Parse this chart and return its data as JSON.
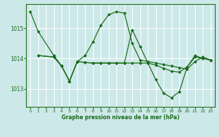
{
  "bg_color": "#cce8e8",
  "grid_color": "#ffffff",
  "line_color": "#1a6b1a",
  "xlabel": "Graphe pression niveau de la mer (hPa)",
  "xlim": [
    -0.5,
    23.5
  ],
  "ylim": [
    1012.4,
    1015.8
  ],
  "yticks": [
    1013,
    1014,
    1015
  ],
  "xtick_labels": [
    "0",
    "1",
    "2",
    "3",
    "4",
    "5",
    "6",
    "7",
    "8",
    "9",
    "10",
    "11",
    "12",
    "13",
    "14",
    "15",
    "16",
    "17",
    "18",
    "19",
    "20",
    "21",
    "22",
    "23"
  ],
  "line1_x": [
    0,
    1,
    3,
    4,
    5,
    6,
    7,
    8,
    9,
    10,
    11,
    12,
    13,
    14,
    15,
    16,
    17,
    18,
    19,
    20,
    21,
    22,
    23
  ],
  "line1_y": [
    1015.55,
    1014.9,
    1014.1,
    1013.75,
    1013.25,
    1013.9,
    1014.1,
    1014.55,
    1015.1,
    1015.45,
    1015.55,
    1015.5,
    1014.5,
    1013.95,
    1013.9,
    1013.85,
    1013.8,
    1013.75,
    1013.7,
    1013.65,
    1013.9,
    1014.05,
    1013.95
  ],
  "line2_x": [
    1,
    3,
    4,
    5,
    6,
    7,
    8,
    9,
    10,
    11,
    12,
    13,
    14,
    15,
    16,
    17,
    18,
    19,
    20,
    21,
    22,
    23
  ],
  "line2_y": [
    1014.1,
    1014.05,
    1013.75,
    1013.25,
    1013.9,
    1013.87,
    1013.85,
    1013.85,
    1013.85,
    1013.85,
    1013.85,
    1013.85,
    1013.85,
    1013.85,
    1013.78,
    1013.68,
    1013.58,
    1013.55,
    1013.72,
    1014.05,
    1014.0,
    1013.95
  ],
  "line3_x": [
    1,
    3,
    4,
    5,
    6,
    7,
    8,
    9,
    10,
    11,
    12,
    13,
    14,
    15,
    16,
    17,
    18,
    19,
    20,
    21,
    22,
    23
  ],
  "line3_y": [
    1014.1,
    1014.05,
    1013.75,
    1013.25,
    1013.9,
    1013.87,
    1013.85,
    1013.85,
    1013.85,
    1013.85,
    1013.85,
    1014.95,
    1014.4,
    1013.85,
    1013.3,
    1012.85,
    1012.7,
    1012.9,
    1013.72,
    1014.1,
    1014.0,
    1013.95
  ]
}
